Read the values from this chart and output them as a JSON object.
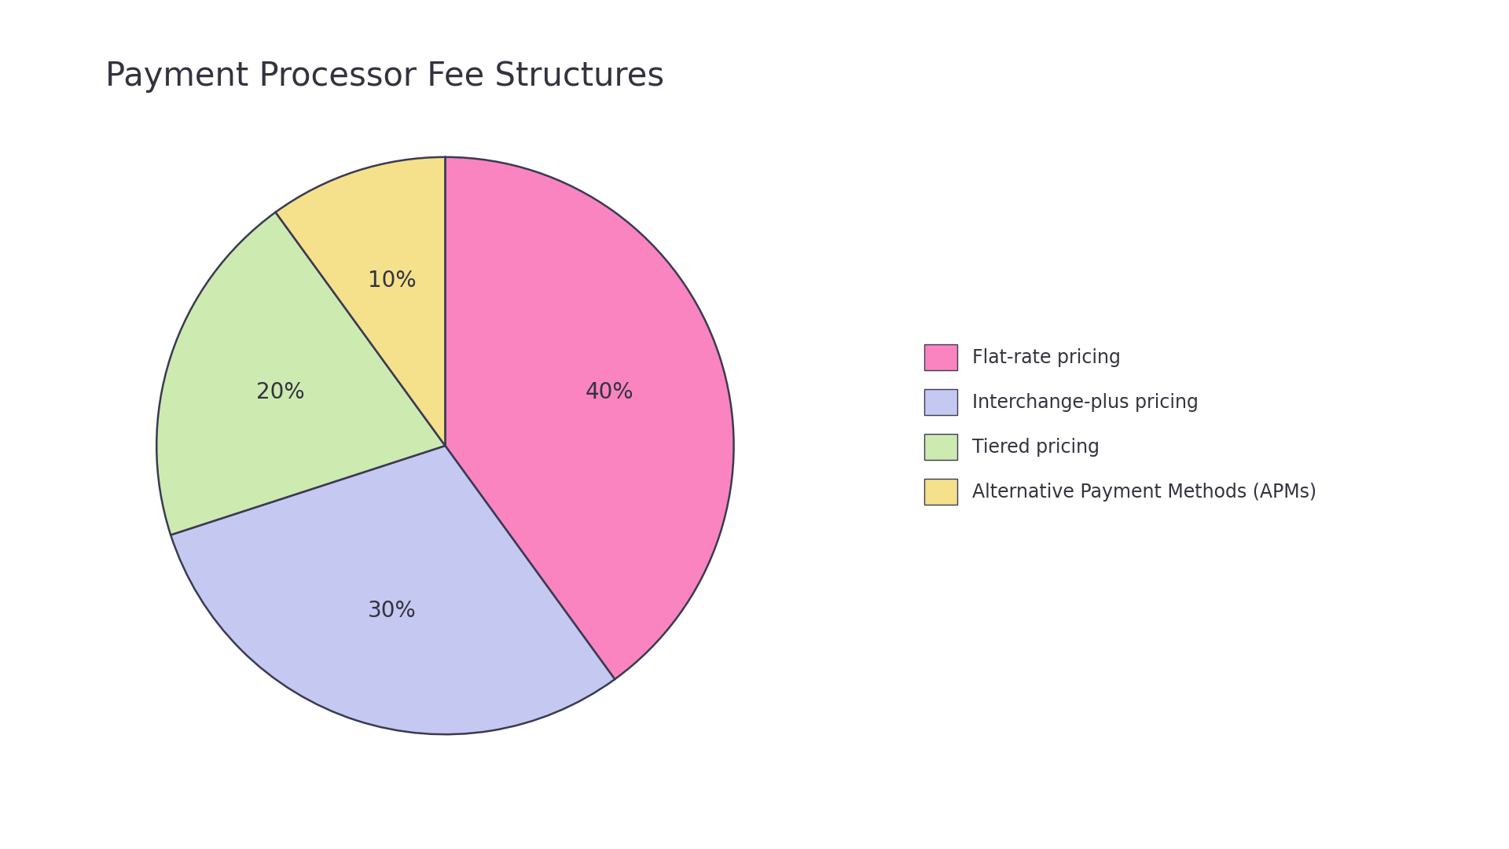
{
  "title": "Payment Processor Fee Structures",
  "slices": [
    40,
    30,
    20,
    10
  ],
  "pct_labels": [
    "40%",
    "30%",
    "20%",
    "10%"
  ],
  "colors": [
    "#F984C0",
    "#C5C8F0",
    "#CDEAB0",
    "#F5E08C"
  ],
  "edge_color": "#3a3a52",
  "edge_width": 1.8,
  "legend_labels": [
    "Flat-rate pricing",
    "Interchange-plus pricing",
    "Tiered pricing",
    "Alternative Payment Methods (APMs)"
  ],
  "startangle": 90,
  "title_fontsize": 30,
  "pct_fontsize": 20,
  "legend_fontsize": 17,
  "background_color": "#ffffff",
  "text_color": "#333340"
}
